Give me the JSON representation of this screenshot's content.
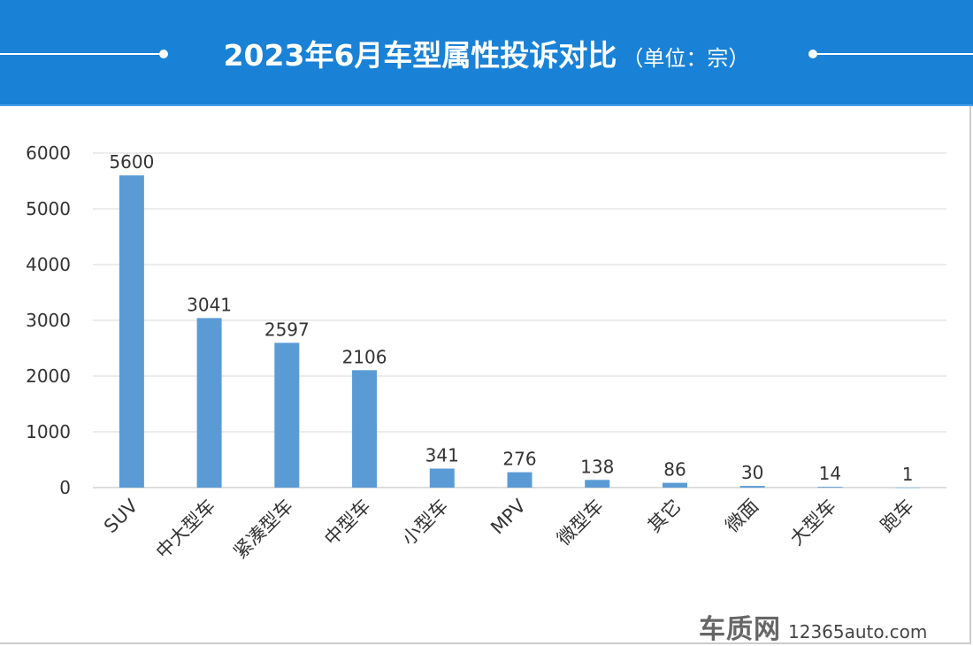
{
  "header": {
    "title": "2023年6月车型属性投诉对比",
    "unit": "（单位：宗）",
    "color": "#1a82d6"
  },
  "chart_data": {
    "type": "bar",
    "title": "2023年6月车型属性投诉对比",
    "subtitle": "（单位：宗）",
    "categories": [
      "SUV",
      "中大型车",
      "紧凑型车",
      "中型车",
      "小型车",
      "MPV",
      "微型车",
      "其它",
      "微面",
      "大型车",
      "跑车"
    ],
    "values": [
      5600,
      3041,
      2597,
      2106,
      341,
      276,
      138,
      86,
      30,
      14,
      1
    ],
    "ylim": [
      0,
      6000
    ],
    "yticks": [
      0,
      1000,
      2000,
      3000,
      4000,
      5000,
      6000
    ],
    "grid": true,
    "bar_color": "#5b9bd5"
  },
  "watermark": {
    "brand": "车质网",
    "url": "12365auto.com"
  }
}
